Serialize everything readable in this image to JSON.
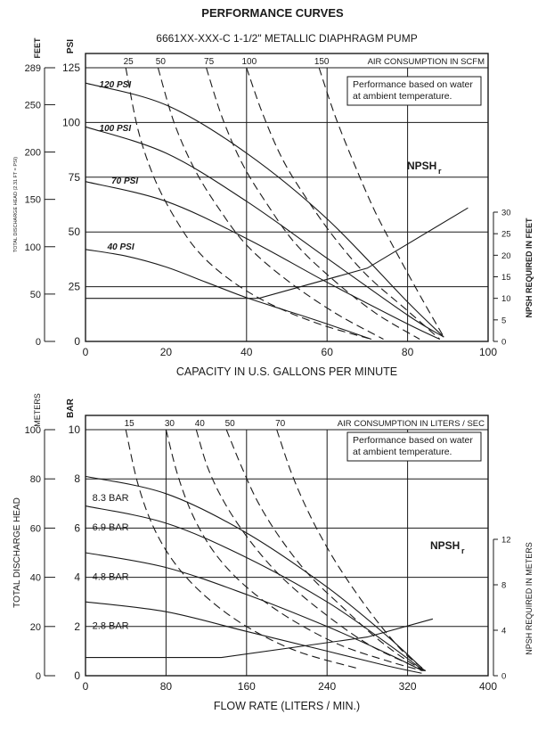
{
  "page_title": "PERFORMANCE CURVES",
  "chart_data": [
    {
      "type": "line",
      "subtitle": "6661XX-XXX-C  1-1/2\" METALLIC DIAPHRAGM PUMP",
      "xlabel": "CAPACITY IN U.S. GALLONS PER MINUTE",
      "ylabel_psi": "PSI",
      "ylabel_feet": "FEET",
      "ylabel_head": "TOTAL DISCHARGE HEAD (2.31 FT = PSI)",
      "ylabel_right": "NPSH REQUIRED IN FEET",
      "top_axis_label": "AIR CONSUMPTION IN SCFM",
      "note": [
        "Performance based on water",
        "at ambient temperature."
      ],
      "npsh_label": "NPSH",
      "npsh_sub": "r",
      "xlim": [
        0,
        100
      ],
      "ylim": [
        0,
        125
      ],
      "y2lim": [
        0,
        289
      ],
      "y3lim": [
        0,
        30
      ],
      "x_ticks": [
        "0",
        "20",
        "40",
        "60",
        "80",
        "100"
      ],
      "psi_ticks": [
        "0",
        "25",
        "50",
        "75",
        "100",
        "125"
      ],
      "feet_ticks": [
        "0",
        "50",
        "100",
        "150",
        "200",
        "250",
        "289"
      ],
      "npsh_ticks": [
        "0",
        "5",
        "10",
        "15",
        "20",
        "25",
        "30"
      ],
      "air_ticks": [
        "25",
        "50",
        "75",
        "100",
        "150"
      ],
      "series": [
        {
          "name": "120 PSI",
          "x": [
            0,
            20,
            40,
            60,
            80,
            89
          ],
          "y": [
            118,
            108,
            86,
            56,
            18,
            2
          ]
        },
        {
          "name": "100 PSI",
          "x": [
            0,
            20,
            40,
            60,
            80,
            89
          ],
          "y": [
            98,
            86,
            64,
            38,
            12,
            2
          ]
        },
        {
          "name": "70 PSI",
          "x": [
            0,
            20,
            40,
            60,
            80,
            88
          ],
          "y": [
            73,
            64,
            47,
            27,
            8,
            1
          ]
        },
        {
          "name": "40 PSI",
          "x": [
            0,
            10,
            20,
            30,
            40,
            50,
            60,
            71
          ],
          "y": [
            42,
            39,
            34,
            27,
            20,
            14,
            8,
            1
          ]
        }
      ],
      "air_curves": [
        {
          "name": "25",
          "x": [
            10,
            13,
            17,
            22,
            28,
            36,
            46,
            58,
            71
          ],
          "y": [
            125,
            97,
            75,
            57,
            41,
            28,
            17,
            8,
            1
          ]
        },
        {
          "name": "50",
          "x": [
            18,
            22,
            27,
            33,
            40,
            50,
            62,
            74
          ],
          "y": [
            125,
            100,
            79,
            61,
            44,
            28,
            13,
            1
          ]
        },
        {
          "name": "75",
          "x": [
            30,
            34,
            39,
            45,
            52,
            61,
            72,
            83
          ],
          "y": [
            125,
            102,
            81,
            63,
            45,
            29,
            13,
            1
          ]
        },
        {
          "name": "100",
          "x": [
            40,
            44,
            49,
            55,
            62,
            70,
            80,
            88
          ],
          "y": [
            125,
            104,
            83,
            65,
            47,
            30,
            14,
            1
          ]
        },
        {
          "name": "150",
          "x": [
            58,
            62,
            67,
            72,
            78,
            84,
            89
          ],
          "y": [
            125,
            103,
            80,
            59,
            38,
            18,
            2
          ]
        }
      ],
      "npsh_curve": {
        "x": [
          0,
          43,
          70,
          95
        ],
        "y": [
          10,
          10,
          17,
          31
        ]
      }
    },
    {
      "type": "line",
      "xlabel": "FLOW RATE (LITERS / MIN.)",
      "ylabel_bar": "BAR",
      "ylabel_meters": "METERS",
      "ylabel_head": "TOTAL DISCHARGE HEAD",
      "ylabel_right": "NPSH REQUIRED IN METERS",
      "top_axis_label": "AIR CONSUMPTION IN LITERS / SEC",
      "note": [
        "Performance based on water",
        "at ambient temperature."
      ],
      "npsh_label": "NPSH",
      "npsh_sub": "r",
      "xlim": [
        0,
        400
      ],
      "ylim": [
        0,
        10
      ],
      "y2lim": [
        0,
        100
      ],
      "y3lim": [
        0,
        12
      ],
      "x_ticks": [
        "0",
        "80",
        "160",
        "240",
        "320",
        "400"
      ],
      "bar_ticks": [
        "0",
        "2",
        "4",
        "6",
        "8",
        "10"
      ],
      "meter_ticks": [
        "0",
        "20",
        "40",
        "60",
        "80",
        "100"
      ],
      "npsh_ticks": [
        "0",
        "4",
        "8",
        "12"
      ],
      "air_ticks": [
        "15",
        "30",
        "40",
        "50",
        "70"
      ],
      "series": [
        {
          "name": "8.3 BAR",
          "x": [
            0,
            80,
            160,
            240,
            300,
            337
          ],
          "y": [
            8.1,
            7.4,
            5.8,
            3.6,
            1.6,
            0.2
          ]
        },
        {
          "name": "6.9 BAR",
          "x": [
            0,
            80,
            160,
            240,
            300,
            336
          ],
          "y": [
            6.9,
            6.2,
            4.8,
            3.0,
            1.3,
            0.2
          ]
        },
        {
          "name": "4.8 BAR",
          "x": [
            0,
            80,
            160,
            240,
            300,
            335
          ],
          "y": [
            5.0,
            4.4,
            3.3,
            2.0,
            0.9,
            0.2
          ]
        },
        {
          "name": "2.8 BAR",
          "x": [
            0,
            80,
            160,
            240,
            300,
            334
          ],
          "y": [
            3.0,
            2.6,
            1.8,
            1.0,
            0.4,
            0.1
          ]
        }
      ],
      "air_curves": [
        {
          "name": "15",
          "x": [
            40,
            52,
            68,
            90,
            120,
            160,
            210,
            270
          ],
          "y": [
            10,
            7.8,
            6.0,
            4.5,
            3.2,
            2.0,
            1.0,
            0.3
          ]
        },
        {
          "name": "30",
          "x": [
            80,
            92,
            108,
            130,
            160,
            200,
            250,
            300,
            335
          ],
          "y": [
            10,
            8.1,
            6.4,
            4.9,
            3.6,
            2.4,
            1.3,
            0.6,
            0.2
          ]
        },
        {
          "name": "40",
          "x": [
            110,
            122,
            140,
            165,
            195,
            235,
            280,
            320,
            337
          ],
          "y": [
            10,
            8.4,
            6.9,
            5.4,
            4.0,
            2.6,
            1.3,
            0.5,
            0.2
          ]
        },
        {
          "name": "50",
          "x": [
            140,
            155,
            172,
            195,
            222,
            255,
            290,
            320,
            338
          ],
          "y": [
            10,
            8.5,
            7.0,
            5.5,
            4.1,
            2.8,
            1.5,
            0.6,
            0.2
          ]
        },
        {
          "name": "70",
          "x": [
            190,
            205,
            222,
            243,
            265,
            290,
            315,
            338
          ],
          "y": [
            10,
            8.2,
            6.6,
            5.0,
            3.6,
            2.2,
            1.0,
            0.2
          ]
        }
      ],
      "npsh_curve": {
        "x": [
          0,
          135,
          280,
          345
        ],
        "y": [
          1.6,
          1.6,
          3.4,
          5.0
        ]
      }
    }
  ]
}
